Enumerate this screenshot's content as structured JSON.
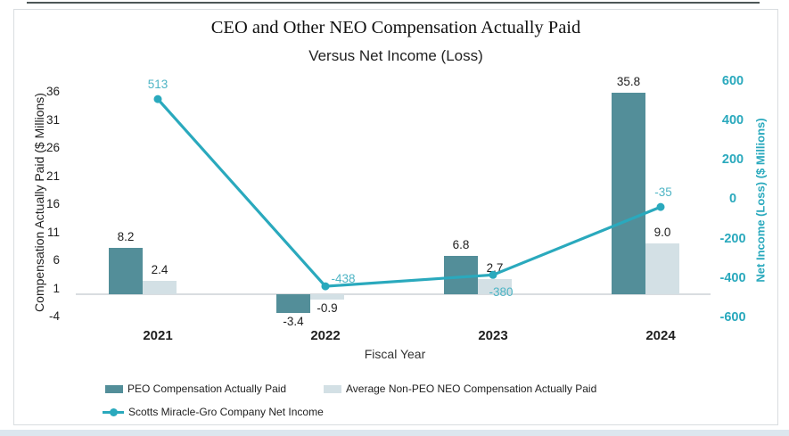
{
  "chart_data": {
    "type": "combo-bar-line",
    "title": "CEO and Other NEO Compensation Actually Paid",
    "subtitle": "Versus Net Income (Loss)",
    "xlabel": "Fiscal Year",
    "categories": [
      "2021",
      "2022",
      "2023",
      "2024"
    ],
    "series": [
      {
        "name": "PEO Compensation Actually Paid",
        "type": "bar",
        "axis": "left",
        "values": [
          8.2,
          -3.4,
          6.8,
          35.8
        ],
        "labels": [
          "8.2",
          "-3.4",
          "6.8",
          "35.8"
        ],
        "color": "#538e99"
      },
      {
        "name": "Average Non-PEO NEO Compensation Actually Paid",
        "type": "bar",
        "axis": "left",
        "values": [
          2.4,
          -0.9,
          2.7,
          9.0
        ],
        "labels": [
          "2.4",
          "-0.9",
          "2.7",
          "9.0"
        ],
        "color": "#d3e0e5"
      },
      {
        "name": "Scotts Miracle-Gro Company Net Income",
        "type": "line",
        "axis": "right",
        "values": [
          513,
          -438,
          -380,
          -35
        ],
        "labels": [
          "513",
          "-438",
          "-380",
          "-35"
        ],
        "color": "#2aa9bd"
      }
    ],
    "left_axis": {
      "label": "Compensation Actually Paid ($ Millions)",
      "ticks": [
        36,
        31,
        26,
        21,
        16,
        11,
        6,
        1,
        -4
      ],
      "min": -4,
      "max": 36
    },
    "right_axis": {
      "label": "Net Income (Loss) ($ Millions)",
      "ticks": [
        600,
        400,
        200,
        0,
        -200,
        -400,
        -600
      ],
      "min": -600,
      "max": 600
    },
    "legend_position": "bottom",
    "grid": "off",
    "colors": {
      "peo_bar": "#538e99",
      "non_peo_bar": "#d3e0e5",
      "net_income_line": "#2aa9bd",
      "net_income_label": "#4fb5c5",
      "text": "#1f1f1f",
      "baseline": "#d9dde0"
    }
  }
}
